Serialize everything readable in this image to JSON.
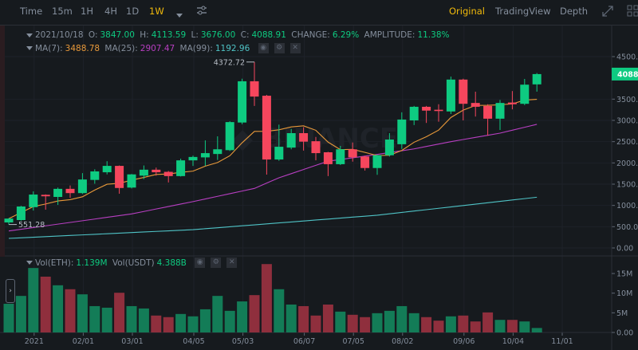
{
  "toolbar": {
    "intervals": [
      "Time",
      "15m",
      "1H",
      "4H",
      "1D",
      "1W"
    ],
    "active_interval": "1W",
    "views": [
      "Original",
      "TradingView",
      "Depth"
    ],
    "active_view": "Original"
  },
  "info": {
    "date": "2021/10/18",
    "o_label": "O:",
    "o": "3847.00",
    "h_label": "H:",
    "h": "4113.59",
    "l_label": "L:",
    "l": "3676.00",
    "c_label": "C:",
    "c": "4088.91",
    "change_label": "CHANGE:",
    "change": "6.29%",
    "amplitude_label": "AMPLITUDE:",
    "amplitude": "11.38%",
    "ma7_label": "MA(7):",
    "ma7": "3488.78",
    "ma25_label": "MA(25):",
    "ma25": "2907.47",
    "ma99_label": "MA(99):",
    "ma99": "1192.96"
  },
  "volume_info": {
    "eth_label": "Vol(ETH):",
    "eth": "1.139M",
    "usdt_label": "Vol(USDT)",
    "usdt": "4.388B"
  },
  "colors": {
    "up": "#0ecb81",
    "down": "#f6465d",
    "vol_up": "#137c57",
    "vol_down": "#8f2f3d",
    "ma7": "#e8993a",
    "ma25": "#b83fc2",
    "ma99": "#4fc3c6",
    "accent": "#f0b90b"
  },
  "chart_data": {
    "type": "candlestick",
    "symbol_interval": "1W",
    "price_axis": {
      "min": 0,
      "max": 4500,
      "step": 500,
      "tick_labels": [
        "0.00",
        "500.00",
        "1000.00",
        "1500.00",
        "2000.00",
        "2500.00",
        "3000.00",
        "3500.00",
        "4500.00"
      ]
    },
    "last_price": "4088.91",
    "high_marker": "4372.72",
    "low_marker": "551.28",
    "x_ticks": [
      {
        "index": 2,
        "label": "2021"
      },
      {
        "index": 6,
        "label": "02/01"
      },
      {
        "index": 10,
        "label": "03/01"
      },
      {
        "index": 15,
        "label": "04/05"
      },
      {
        "index": 19,
        "label": "05/03"
      },
      {
        "index": 24,
        "label": "06/07"
      },
      {
        "index": 28,
        "label": "07/05"
      },
      {
        "index": 32,
        "label": "08/02"
      },
      {
        "index": 37,
        "label": "09/06"
      },
      {
        "index": 41,
        "label": "10/04"
      },
      {
        "index": 45,
        "label": "11/01"
      }
    ],
    "ohlc": [
      [
        600,
        700,
        551,
        690
      ],
      [
        656,
        990,
        640,
        975
      ],
      [
        960,
        1330,
        880,
        1256
      ],
      [
        1250,
        1260,
        900,
        1215
      ],
      [
        1200,
        1420,
        1012,
        1390
      ],
      [
        1390,
        1470,
        1180,
        1290
      ],
      [
        1290,
        1760,
        1270,
        1610
      ],
      [
        1600,
        1850,
        1510,
        1800
      ],
      [
        1780,
        2040,
        1730,
        1930
      ],
      [
        1930,
        1940,
        1275,
        1410
      ],
      [
        1420,
        1740,
        1400,
        1730
      ],
      [
        1700,
        1940,
        1620,
        1840
      ],
      [
        1840,
        1890,
        1700,
        1780
      ],
      [
        1790,
        1810,
        1540,
        1690
      ],
      [
        1690,
        2100,
        1680,
        2060
      ],
      [
        2060,
        2170,
        1930,
        2140
      ],
      [
        2130,
        2530,
        1930,
        2230
      ],
      [
        2210,
        2625,
        2070,
        2320
      ],
      [
        2300,
        2980,
        2280,
        2960
      ],
      [
        2950,
        3980,
        2910,
        3920
      ],
      [
        3920,
        4372.72,
        3340,
        3560
      ],
      [
        3580,
        3600,
        1725,
        2080
      ],
      [
        2080,
        2900,
        2050,
        2380
      ],
      [
        2360,
        2800,
        2320,
        2700
      ],
      [
        2700,
        2840,
        2290,
        2500
      ],
      [
        2510,
        2610,
        2060,
        2230
      ],
      [
        2250,
        2260,
        1690,
        1970
      ],
      [
        1970,
        2400,
        1950,
        2320
      ],
      [
        2320,
        2480,
        2030,
        2130
      ],
      [
        2150,
        2170,
        1820,
        1880
      ],
      [
        1880,
        2190,
        1720,
        2180
      ],
      [
        2180,
        2700,
        2150,
        2550
      ],
      [
        2440,
        3190,
        2330,
        3020
      ],
      [
        3000,
        3340,
        2890,
        3320
      ],
      [
        3320,
        3340,
        2940,
        3230
      ],
      [
        3250,
        3380,
        2970,
        3220
      ],
      [
        3210,
        4030,
        3150,
        3960
      ],
      [
        3960,
        3980,
        3000,
        3390
      ],
      [
        3410,
        3675,
        3090,
        3320
      ],
      [
        3340,
        3380,
        2640,
        3040
      ],
      [
        3040,
        3480,
        2775,
        3410
      ],
      [
        3420,
        3690,
        3260,
        3380
      ],
      [
        3390,
        3975,
        3360,
        3840
      ],
      [
        3847,
        4113.59,
        3676,
        4088.91
      ]
    ],
    "volume_millions": [
      7.3,
      9.3,
      16.4,
      14.2,
      12.0,
      11.0,
      9.7,
      6.7,
      6.3,
      10.1,
      6.7,
      6.1,
      4.3,
      3.9,
      4.7,
      4.1,
      5.9,
      9.3,
      5.5,
      7.9,
      9.5,
      17.4,
      11.0,
      7.1,
      6.7,
      4.3,
      7.1,
      5.3,
      4.5,
      3.9,
      4.9,
      5.5,
      6.7,
      4.9,
      3.9,
      3.0,
      4.1,
      4.3,
      2.8,
      5.1,
      3.2,
      3.2,
      2.8,
      1.139
    ],
    "volume_axis": {
      "min": 0,
      "max": 18,
      "ticks": [
        {
          "v": 0,
          "label": "0.00"
        },
        {
          "v": 5,
          "label": "5M"
        },
        {
          "v": 10,
          "label": "10M"
        },
        {
          "v": 15,
          "label": "15M"
        }
      ]
    },
    "ma25_knots": [
      [
        0,
        400
      ],
      [
        10,
        800
      ],
      [
        15,
        1090
      ],
      [
        20,
        1400
      ],
      [
        22,
        1650
      ],
      [
        26,
        2040
      ],
      [
        30,
        2200
      ],
      [
        33,
        2330
      ],
      [
        36,
        2500
      ],
      [
        40,
        2700
      ],
      [
        43,
        2907.47
      ]
    ],
    "ma99_knots": [
      [
        0,
        225
      ],
      [
        15,
        430
      ],
      [
        30,
        770
      ],
      [
        43,
        1192.96
      ]
    ]
  }
}
